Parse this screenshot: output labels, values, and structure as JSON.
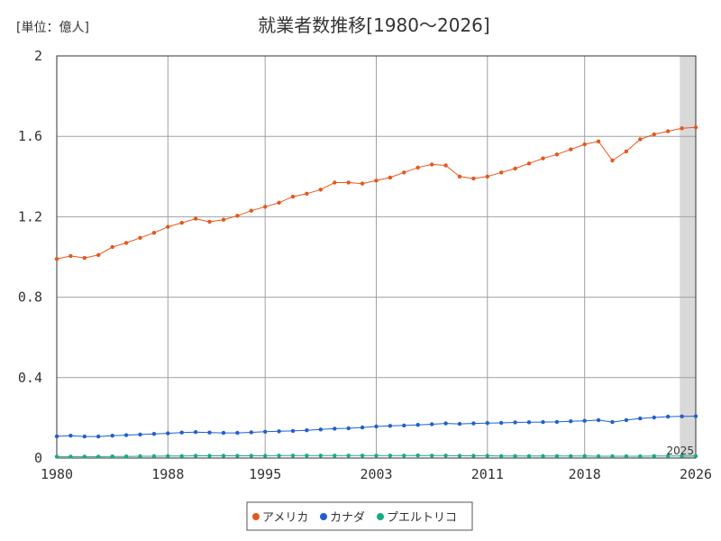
{
  "chart_data": {
    "type": "line",
    "title": "就業者数推移[1980～2026]",
    "unit_label": "[単位：億人]",
    "xlabel": "",
    "ylabel": "",
    "xlim": [
      1980,
      2026
    ],
    "ylim": [
      0,
      2
    ],
    "x_ticks": [
      "1980",
      "1988",
      "1995",
      "2003",
      "2011",
      "2018",
      "2026"
    ],
    "y_ticks": [
      "0",
      "0.4",
      "0.8",
      "1.2",
      "1.6",
      "2"
    ],
    "grid": true,
    "legend_position": "bottom",
    "forecast_start_year": 2025,
    "forecast_label": "2025",
    "x": [
      1980,
      1981,
      1982,
      1983,
      1984,
      1985,
      1986,
      1987,
      1988,
      1989,
      1990,
      1991,
      1992,
      1993,
      1994,
      1995,
      1996,
      1997,
      1998,
      1999,
      2000,
      2001,
      2002,
      2003,
      2004,
      2005,
      2006,
      2007,
      2008,
      2009,
      2010,
      2011,
      2012,
      2013,
      2014,
      2015,
      2016,
      2017,
      2018,
      2019,
      2020,
      2021,
      2022,
      2023,
      2024,
      2025,
      2026
    ],
    "series": [
      {
        "name": "アメリカ",
        "color": "#e8561c",
        "values": [
          0.99,
          1.005,
          0.995,
          1.01,
          1.05,
          1.07,
          1.095,
          1.12,
          1.15,
          1.17,
          1.19,
          1.175,
          1.185,
          1.205,
          1.23,
          1.25,
          1.27,
          1.3,
          1.315,
          1.335,
          1.37,
          1.37,
          1.365,
          1.38,
          1.395,
          1.42,
          1.445,
          1.46,
          1.455,
          1.4,
          1.39,
          1.4,
          1.42,
          1.44,
          1.465,
          1.49,
          1.51,
          1.535,
          1.56,
          1.575,
          1.48,
          1.525,
          1.585,
          1.61,
          1.625,
          1.64,
          1.645
        ]
      },
      {
        "name": "カナダ",
        "color": "#1f5fd0",
        "values": [
          0.108,
          0.111,
          0.107,
          0.107,
          0.111,
          0.114,
          0.117,
          0.12,
          0.123,
          0.127,
          0.129,
          0.127,
          0.125,
          0.125,
          0.128,
          0.131,
          0.133,
          0.135,
          0.138,
          0.142,
          0.146,
          0.148,
          0.152,
          0.157,
          0.16,
          0.162,
          0.165,
          0.168,
          0.172,
          0.17,
          0.172,
          0.174,
          0.175,
          0.177,
          0.178,
          0.179,
          0.18,
          0.183,
          0.185,
          0.189,
          0.179,
          0.189,
          0.197,
          0.202,
          0.206,
          0.207,
          0.208
        ]
      },
      {
        "name": "プエルトリコ",
        "color": "#1aa887",
        "values": [
          0.007,
          0.007,
          0.007,
          0.007,
          0.008,
          0.008,
          0.009,
          0.009,
          0.01,
          0.01,
          0.011,
          0.011,
          0.011,
          0.011,
          0.011,
          0.011,
          0.012,
          0.012,
          0.012,
          0.012,
          0.012,
          0.012,
          0.012,
          0.012,
          0.012,
          0.012,
          0.013,
          0.012,
          0.012,
          0.011,
          0.011,
          0.011,
          0.01,
          0.01,
          0.01,
          0.01,
          0.01,
          0.01,
          0.01,
          0.009,
          0.009,
          0.009,
          0.009,
          0.01,
          0.01,
          0.01,
          0.01
        ]
      }
    ]
  }
}
